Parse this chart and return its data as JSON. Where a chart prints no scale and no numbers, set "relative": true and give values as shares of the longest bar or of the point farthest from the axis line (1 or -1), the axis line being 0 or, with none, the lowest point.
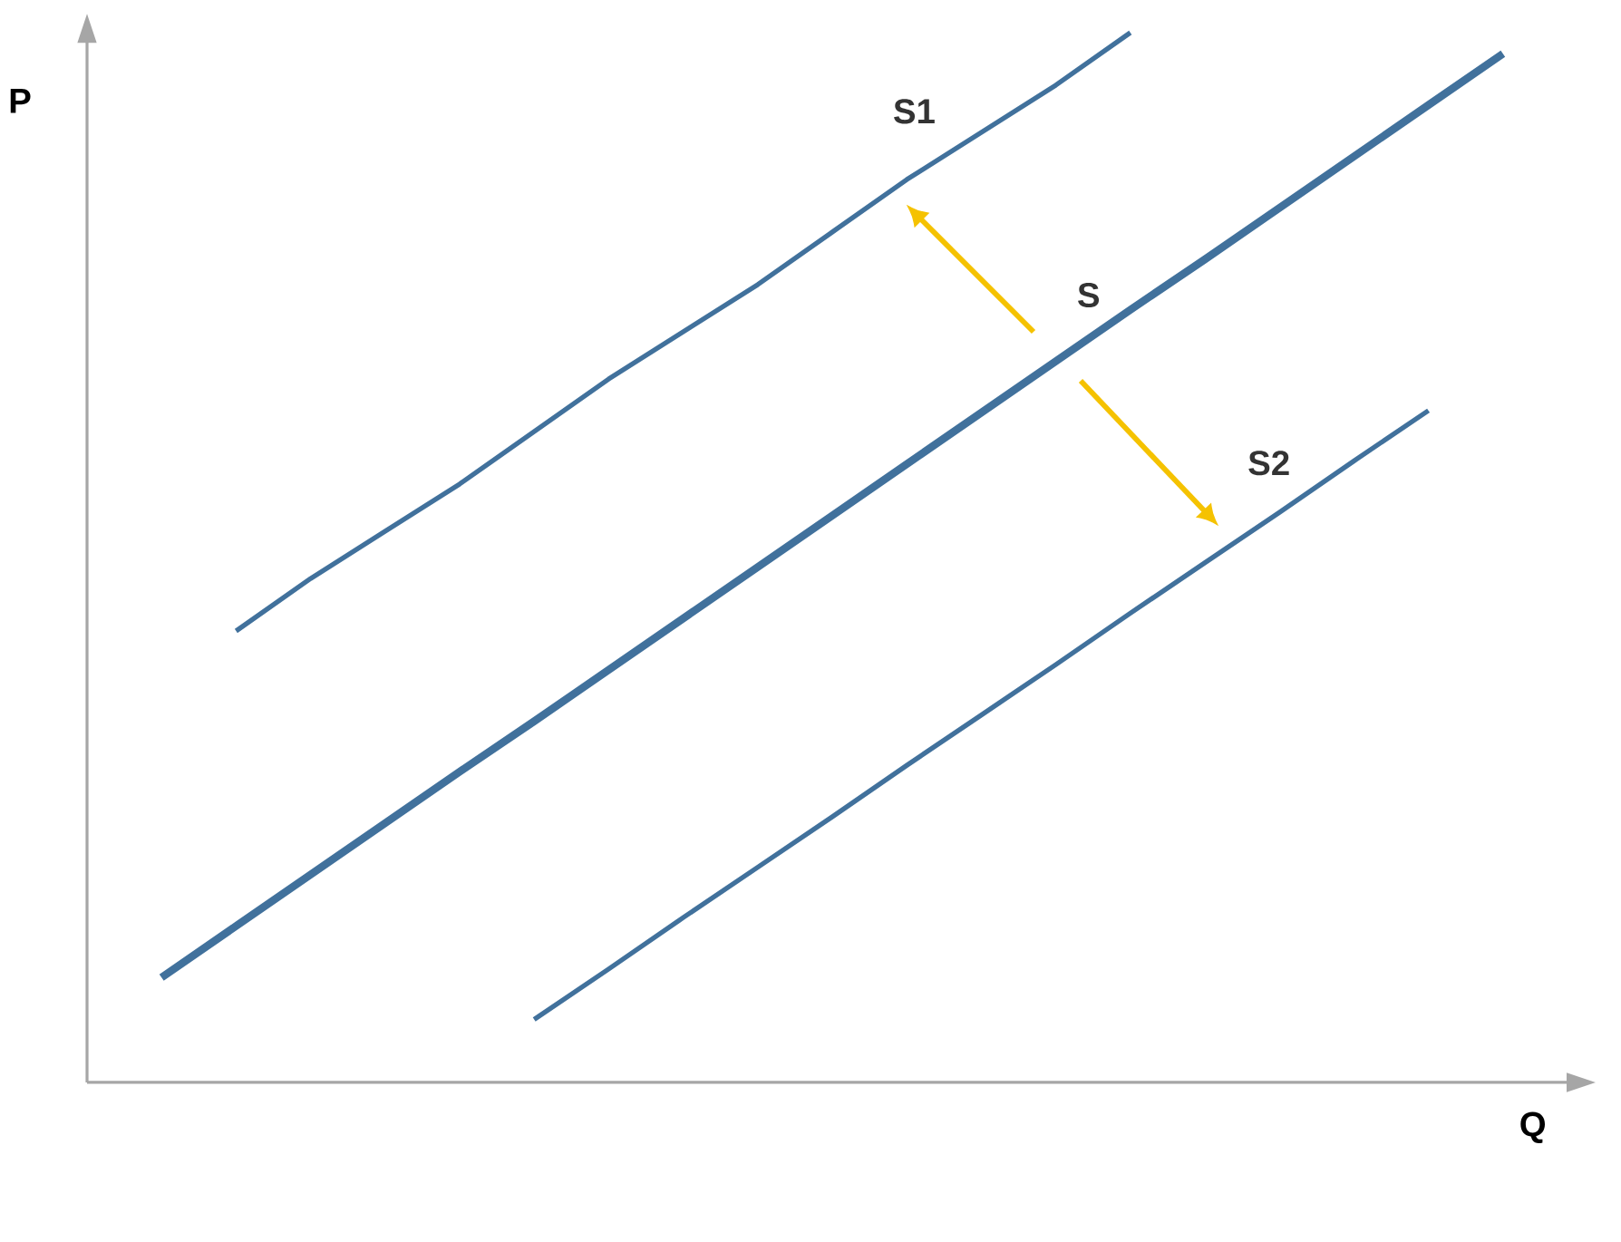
{
  "chart_data": {
    "type": "line",
    "relative": true,
    "xlabel": "Q",
    "ylabel": "P",
    "categories": [
      null,
      null,
      null,
      null,
      null,
      null,
      null,
      null,
      null,
      null,
      null,
      null,
      null,
      null,
      null,
      null,
      null,
      null,
      null,
      null,
      null
    ],
    "series": [
      {
        "name": "S1",
        "color": "#41719c",
        "values": [
          null,
          null,
          0.43,
          0.48,
          0.525,
          0.57,
          0.62,
          0.67,
          0.715,
          0.76,
          0.81,
          0.86,
          0.905,
          0.95,
          1.0,
          null,
          null,
          null,
          null,
          null,
          null
        ]
      },
      {
        "name": "S",
        "color": "#41719c",
        "values": [
          null,
          0.1,
          0.149,
          0.198,
          0.247,
          0.296,
          0.344,
          0.393,
          0.442,
          0.491,
          0.54,
          0.589,
          0.638,
          0.687,
          0.736,
          0.784,
          0.833,
          0.882,
          0.931,
          0.98,
          null
        ]
      },
      {
        "name": "S2",
        "color": "#41719c",
        "values": [
          null,
          null,
          null,
          null,
          null,
          null,
          0.06,
          0.108,
          0.157,
          0.205,
          0.253,
          0.302,
          0.35,
          0.398,
          0.447,
          0.495,
          0.543,
          0.592,
          0.64,
          null,
          null
        ]
      }
    ]
  }
}
